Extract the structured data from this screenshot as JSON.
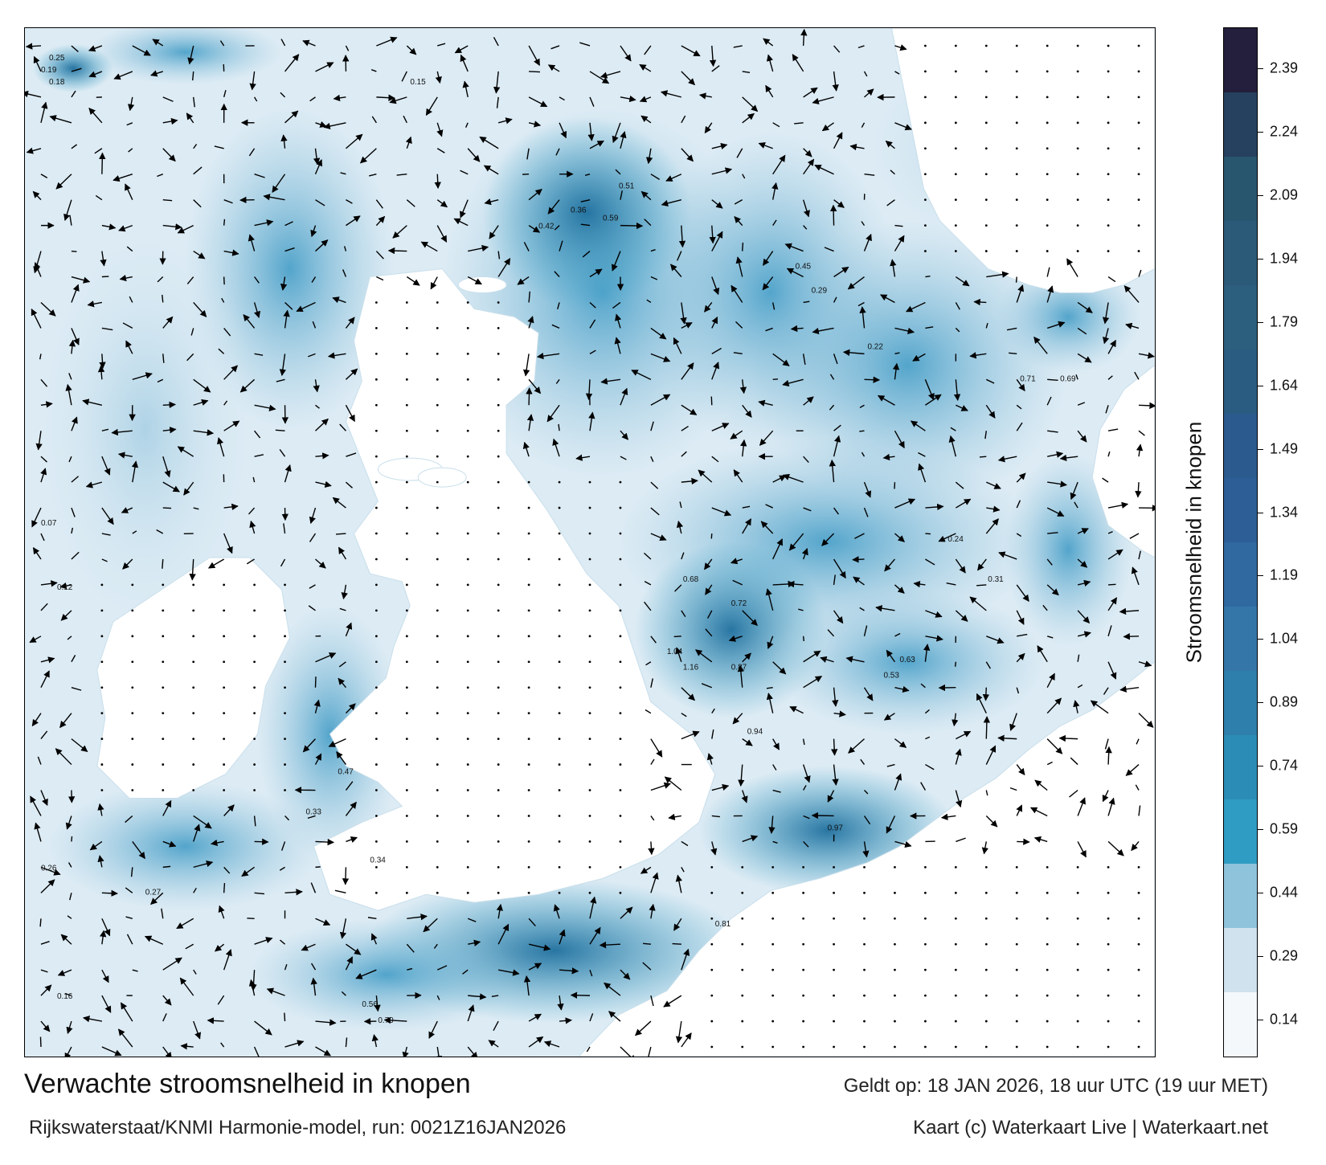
{
  "title": "Verwachte stroomsnelheid in knopen",
  "model_run": "Rijkswaterstaat/KNMI Harmonie-model, run: 0021Z16JAN2026",
  "valid_time": "Geldt op: 18 JAN 2026, 18 uur UTC (19 uur MET)",
  "credits": "Kaart (c) Waterkaart Live | Waterkaart.net",
  "colorbar": {
    "label": "Stroomsnelheid in knopen",
    "ticks": [
      "0.14",
      "0.29",
      "0.44",
      "0.59",
      "0.74",
      "0.89",
      "1.04",
      "1.19",
      "1.34",
      "1.49",
      "1.64",
      "1.79",
      "1.94",
      "2.09",
      "2.24",
      "2.39"
    ],
    "colors": [
      "#f4f8fb",
      "#cfe2ee",
      "#8fc3dc",
      "#2f9cc3",
      "#2b8db5",
      "#2e7fab",
      "#3576a9",
      "#2f69a0",
      "#2d5f96",
      "#2b5a8e",
      "#2a5b80",
      "#2c5f7d",
      "#2a5a78",
      "#28566f",
      "#26405f",
      "#241f3c"
    ]
  },
  "map": {
    "land_color": "#ffffff",
    "sea_color_low": "#e8f1f7",
    "sea_color_high": "#1f6f9e",
    "arrow_color": "#000000",
    "labels": [
      {
        "text": "0.25",
        "id": "north-sea-nw"
      },
      {
        "text": "0.19",
        "id": "north-sea-w"
      },
      {
        "text": "0.18",
        "id": "north-sea-w2"
      },
      {
        "text": "0.15",
        "id": "north-sea-n"
      },
      {
        "text": "0.42",
        "id": "north-sea-c"
      },
      {
        "text": "0.36",
        "id": "north-sea-c2"
      },
      {
        "text": "0.59",
        "id": "north-sea-c3"
      },
      {
        "text": "0.51",
        "id": "north-sea-c4"
      },
      {
        "text": "0.45",
        "id": "north-sea-e"
      },
      {
        "text": "0.29",
        "id": "north-sea-e2"
      },
      {
        "text": "0.22",
        "id": "north-sea-e3"
      },
      {
        "text": "0.68",
        "id": "north-sea-s"
      },
      {
        "text": "0.72",
        "id": "north-sea-s2"
      },
      {
        "text": "1.04",
        "id": "channel-e"
      },
      {
        "text": "1.16",
        "id": "channel-e2"
      },
      {
        "text": "0.94",
        "id": "channel-c"
      },
      {
        "text": "0.87",
        "id": "channel-c2"
      },
      {
        "text": "0.97",
        "id": "channel-sw"
      },
      {
        "text": "0.81",
        "id": "channel-sw2"
      },
      {
        "text": "0.34",
        "id": "bristol"
      },
      {
        "text": "0.27",
        "id": "celtic"
      },
      {
        "text": "0.47",
        "id": "irish-sea"
      },
      {
        "text": "0.33",
        "id": "irish-sea2"
      },
      {
        "text": "0.12",
        "id": "atlantic-w"
      },
      {
        "text": "0.07",
        "id": "atlantic-w2"
      },
      {
        "text": "0.16",
        "id": "atlantic-sw"
      },
      {
        "text": "0.26",
        "id": "atlantic-sw2"
      },
      {
        "text": "0.56",
        "id": "channel-sw3"
      },
      {
        "text": "0.79",
        "id": "channel-sw4"
      },
      {
        "text": "0.63",
        "id": "dover"
      },
      {
        "text": "0.53",
        "id": "dover2"
      },
      {
        "text": "0.71",
        "id": "skagerrak"
      },
      {
        "text": "0.69",
        "id": "skagerrak2"
      },
      {
        "text": "0.24",
        "id": "german-bight"
      },
      {
        "text": "0.31",
        "id": "german-bight2"
      }
    ]
  }
}
